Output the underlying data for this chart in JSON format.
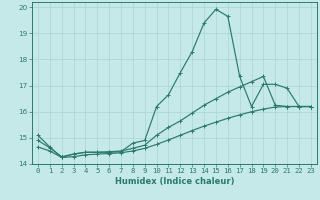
{
  "xlabel": "Humidex (Indice chaleur)",
  "bg_color": "#c5e8e8",
  "grid_color": "#aad4d4",
  "line_color": "#2a7a6a",
  "xlim": [
    -0.5,
    23.5
  ],
  "ylim": [
    14,
    20.2
  ],
  "xticks": [
    0,
    1,
    2,
    3,
    4,
    5,
    6,
    7,
    8,
    9,
    10,
    11,
    12,
    13,
    14,
    15,
    16,
    17,
    18,
    19,
    20,
    21,
    22,
    23
  ],
  "yticks": [
    14,
    15,
    16,
    17,
    18,
    19,
    20
  ],
  "line1_x": [
    0,
    1,
    2,
    3,
    4,
    5,
    6,
    7,
    8,
    9,
    10,
    11,
    12,
    13,
    14,
    15,
    16,
    17,
    18,
    19,
    20,
    21,
    22,
    23
  ],
  "line1_y": [
    15.1,
    14.65,
    14.25,
    14.38,
    14.45,
    14.45,
    14.45,
    14.47,
    14.8,
    14.9,
    16.2,
    16.65,
    17.5,
    18.3,
    19.4,
    19.92,
    19.65,
    17.35,
    16.2,
    17.05,
    17.05,
    16.9,
    16.2,
    16.2
  ],
  "line2_x": [
    0,
    1,
    2,
    3,
    4,
    5,
    6,
    7,
    8,
    9,
    10,
    11,
    12,
    13,
    14,
    15,
    16,
    17,
    18,
    19,
    20,
    21,
    22,
    23
  ],
  "line2_y": [
    14.9,
    14.62,
    14.28,
    14.38,
    14.45,
    14.45,
    14.47,
    14.5,
    14.6,
    14.72,
    15.1,
    15.4,
    15.65,
    15.95,
    16.25,
    16.5,
    16.75,
    16.95,
    17.15,
    17.35,
    16.25,
    16.2,
    16.2,
    16.2
  ],
  "line3_x": [
    0,
    1,
    2,
    3,
    4,
    5,
    6,
    7,
    8,
    9,
    10,
    11,
    12,
    13,
    14,
    15,
    16,
    17,
    18,
    19,
    20,
    21,
    22,
    23
  ],
  "line3_y": [
    14.65,
    14.5,
    14.25,
    14.28,
    14.35,
    14.38,
    14.4,
    14.43,
    14.5,
    14.6,
    14.75,
    14.92,
    15.1,
    15.28,
    15.45,
    15.6,
    15.75,
    15.88,
    16.0,
    16.1,
    16.18,
    16.2,
    16.2,
    16.2
  ],
  "xlabel_fontsize": 6.0,
  "tick_fontsize": 5.2,
  "marker_size": 2.5,
  "line_width": 0.85
}
